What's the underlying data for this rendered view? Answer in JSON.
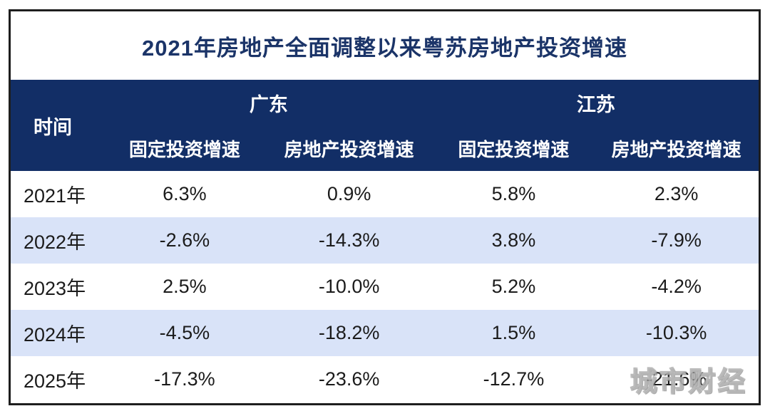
{
  "title": "2021年房地产全面调整以来粤苏房地产投资增速",
  "table": {
    "time_header": "时间",
    "group_headers": [
      "广东",
      "江苏"
    ],
    "sub_headers": [
      "固定投资增速",
      "房地产投资增速",
      "固定投资增速",
      "房地产投资增速"
    ],
    "rows": [
      {
        "cells": [
          "2021年",
          "6.3%",
          "0.9%",
          "5.8%",
          "2.3%"
        ]
      },
      {
        "cells": [
          "2022年",
          "-2.6%",
          "-14.3%",
          "3.8%",
          "-7.9%"
        ]
      },
      {
        "cells": [
          "2023年",
          "2.5%",
          "-10.0%",
          "5.2%",
          "-4.2%"
        ]
      },
      {
        "cells": [
          "2024年",
          "-4.5%",
          "-18.2%",
          "1.5%",
          "-10.3%"
        ]
      },
      {
        "cells": [
          "2025年",
          "-17.3%",
          "-23.6%",
          "-12.7%",
          "-21.6%"
        ]
      }
    ]
  },
  "watermark": "城市财经",
  "colors": {
    "header_navy": "#122e66",
    "row_alt_blue": "#d9e3f8",
    "title_text": "#1b3468",
    "border": "#1e1e1e",
    "body_text": "#1b1b1b"
  },
  "chart_data": {
    "type": "table",
    "title": "2021年房地产全面调整以来粤苏房地产投资增速",
    "categories": [
      "2021年",
      "2022年",
      "2023年",
      "2024年",
      "2025年"
    ],
    "unit": "%",
    "series": [
      {
        "name": "广东-固定投资增速",
        "values": [
          6.3,
          -2.6,
          2.5,
          -4.5,
          -17.3
        ]
      },
      {
        "name": "广东-房地产投资增速",
        "values": [
          0.9,
          -14.3,
          -10.0,
          -18.2,
          -23.6
        ]
      },
      {
        "name": "江苏-固定投资增速",
        "values": [
          5.8,
          3.8,
          5.2,
          1.5,
          -12.7
        ]
      },
      {
        "name": "江苏-房地产投资增速",
        "values": [
          2.3,
          -7.9,
          -4.2,
          -10.3,
          -21.6
        ]
      }
    ],
    "legend_position": "none",
    "grid": false
  }
}
